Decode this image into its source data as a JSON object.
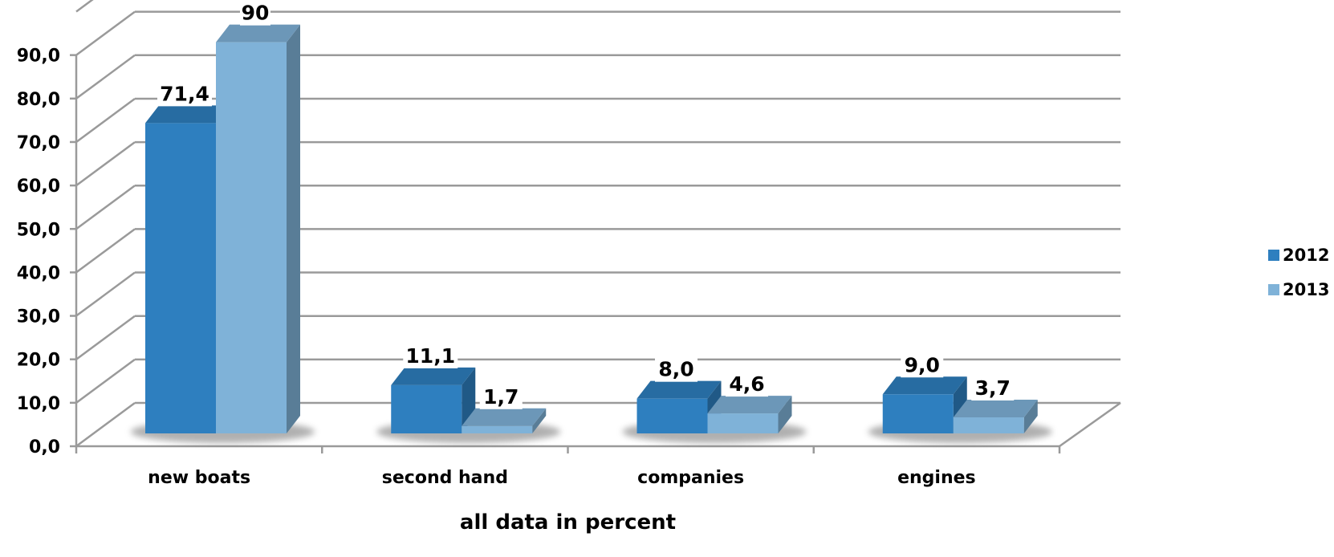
{
  "chart_data": {
    "type": "bar",
    "categories": [
      "new boats",
      "second hand",
      "companies",
      "engines"
    ],
    "series": [
      {
        "name": "2012",
        "values": [
          71.4,
          11.1,
          8.0,
          9.0
        ],
        "labels": [
          "71,4",
          "11,1",
          "8,0",
          "9,0"
        ],
        "color": "#2e7fbf"
      },
      {
        "name": "2013",
        "values": [
          90,
          1.7,
          4.6,
          3.7
        ],
        "labels": [
          "90",
          "1,7",
          "4,6",
          "3,7"
        ],
        "color": "#7fb2d8"
      }
    ],
    "xlabel": "all data in percent",
    "ylabel": "",
    "ylim": [
      0,
      90
    ],
    "yticks": [
      "0,0",
      "10,0",
      "20,0",
      "30,0",
      "40,0",
      "50,0",
      "60,0",
      "70,0",
      "80,0",
      "90,0"
    ],
    "grid": true,
    "legend": "right",
    "style": "3d-clustered-column"
  }
}
